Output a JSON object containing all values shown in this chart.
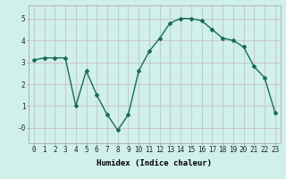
{
  "x": [
    0,
    1,
    2,
    3,
    4,
    5,
    6,
    7,
    8,
    9,
    10,
    11,
    12,
    13,
    14,
    15,
    16,
    17,
    18,
    19,
    20,
    21,
    22,
    23
  ],
  "y": [
    3.1,
    3.2,
    3.2,
    3.2,
    1.0,
    2.6,
    1.5,
    0.6,
    -0.1,
    0.6,
    2.6,
    3.5,
    4.1,
    4.8,
    5.0,
    5.0,
    4.9,
    4.5,
    4.1,
    4.0,
    3.7,
    2.8,
    2.3,
    0.7
  ],
  "line_color": "#1a6b5a",
  "marker": "D",
  "marker_size": 2.0,
  "line_width": 1.0,
  "grid_color": "#b8ddd8",
  "grid_major_color": "#c8b8b8",
  "xlabel": "Humidex (Indice chaleur)",
  "xlim": [
    -0.5,
    23.5
  ],
  "ylim": [
    -0.7,
    5.6
  ],
  "ytick_vals": [
    0,
    1,
    2,
    3,
    4,
    5
  ],
  "ytick_labels": [
    "-0",
    "1",
    "2",
    "3",
    "4",
    "5"
  ],
  "xtick_labels": [
    "0",
    "1",
    "2",
    "3",
    "4",
    "5",
    "6",
    "7",
    "8",
    "9",
    "10",
    "11",
    "12",
    "13",
    "14",
    "15",
    "16",
    "17",
    "18",
    "19",
    "20",
    "21",
    "22",
    "23"
  ],
  "xlabel_fontsize": 6.5,
  "tick_fontsize": 5.5,
  "ax_bg": "#cff0eb",
  "fig_bg": "#cff0eb",
  "spine_color": "#aaaaaa"
}
